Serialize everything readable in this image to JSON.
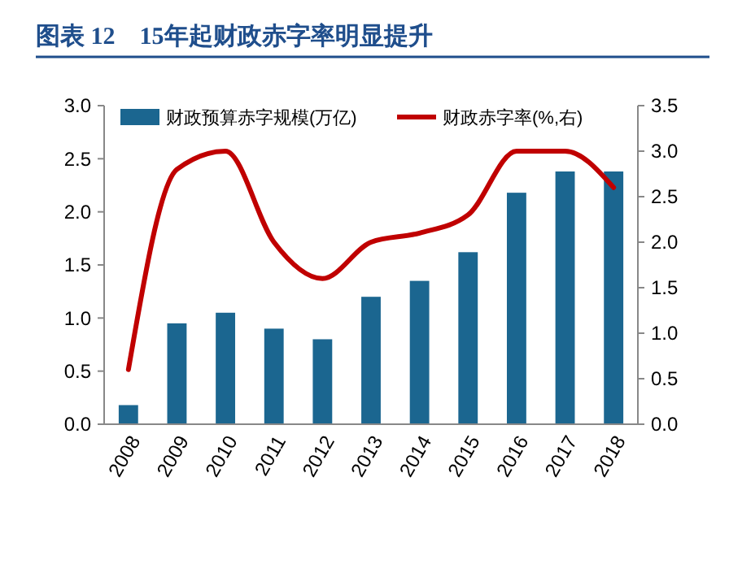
{
  "chart_data": {
    "type": "bar",
    "title": "图表 12　15年起财政赤字率明显提升",
    "categories": [
      "2008",
      "2009",
      "2010",
      "2011",
      "2012",
      "2013",
      "2014",
      "2015",
      "2016",
      "2017",
      "2018"
    ],
    "series": [
      {
        "name": "财政预算赤字规模(万亿)",
        "color": "#1b6690",
        "values": [
          0.18,
          0.95,
          1.05,
          0.9,
          0.8,
          1.2,
          1.35,
          1.62,
          2.18,
          2.38,
          2.38
        ]
      },
      {
        "name": "财政赤字率(%,右)",
        "type": "line",
        "axis": "y2",
        "color": "#c00000",
        "values": [
          0.6,
          2.8,
          3.0,
          2.0,
          1.6,
          2.0,
          2.1,
          2.3,
          3.0,
          3.0,
          2.6
        ]
      }
    ],
    "ylim": [
      0,
      3
    ],
    "yticks": [
      {
        "value": 0,
        "label": "0.0"
      },
      {
        "value": 0.5,
        "label": "0.5"
      },
      {
        "value": 1,
        "label": "1.0"
      },
      {
        "value": 1.5,
        "label": "1.5"
      },
      {
        "value": 2,
        "label": "2.0"
      },
      {
        "value": 2.5,
        "label": "2.5"
      },
      {
        "value": 3,
        "label": "3.0"
      }
    ],
    "y2lim": [
      0,
      3.5
    ],
    "y2ticks": [
      {
        "value": 0,
        "label": "0.0"
      },
      {
        "value": 0.5,
        "label": "0.5"
      },
      {
        "value": 1,
        "label": "1.0"
      },
      {
        "value": 1.5,
        "label": "1.5"
      },
      {
        "value": 2,
        "label": "2.0"
      },
      {
        "value": 2.5,
        "label": "2.5"
      },
      {
        "value": 3,
        "label": "3.0"
      },
      {
        "value": 3.5,
        "label": "3.5"
      }
    ],
    "legend": "top",
    "grid": false
  }
}
